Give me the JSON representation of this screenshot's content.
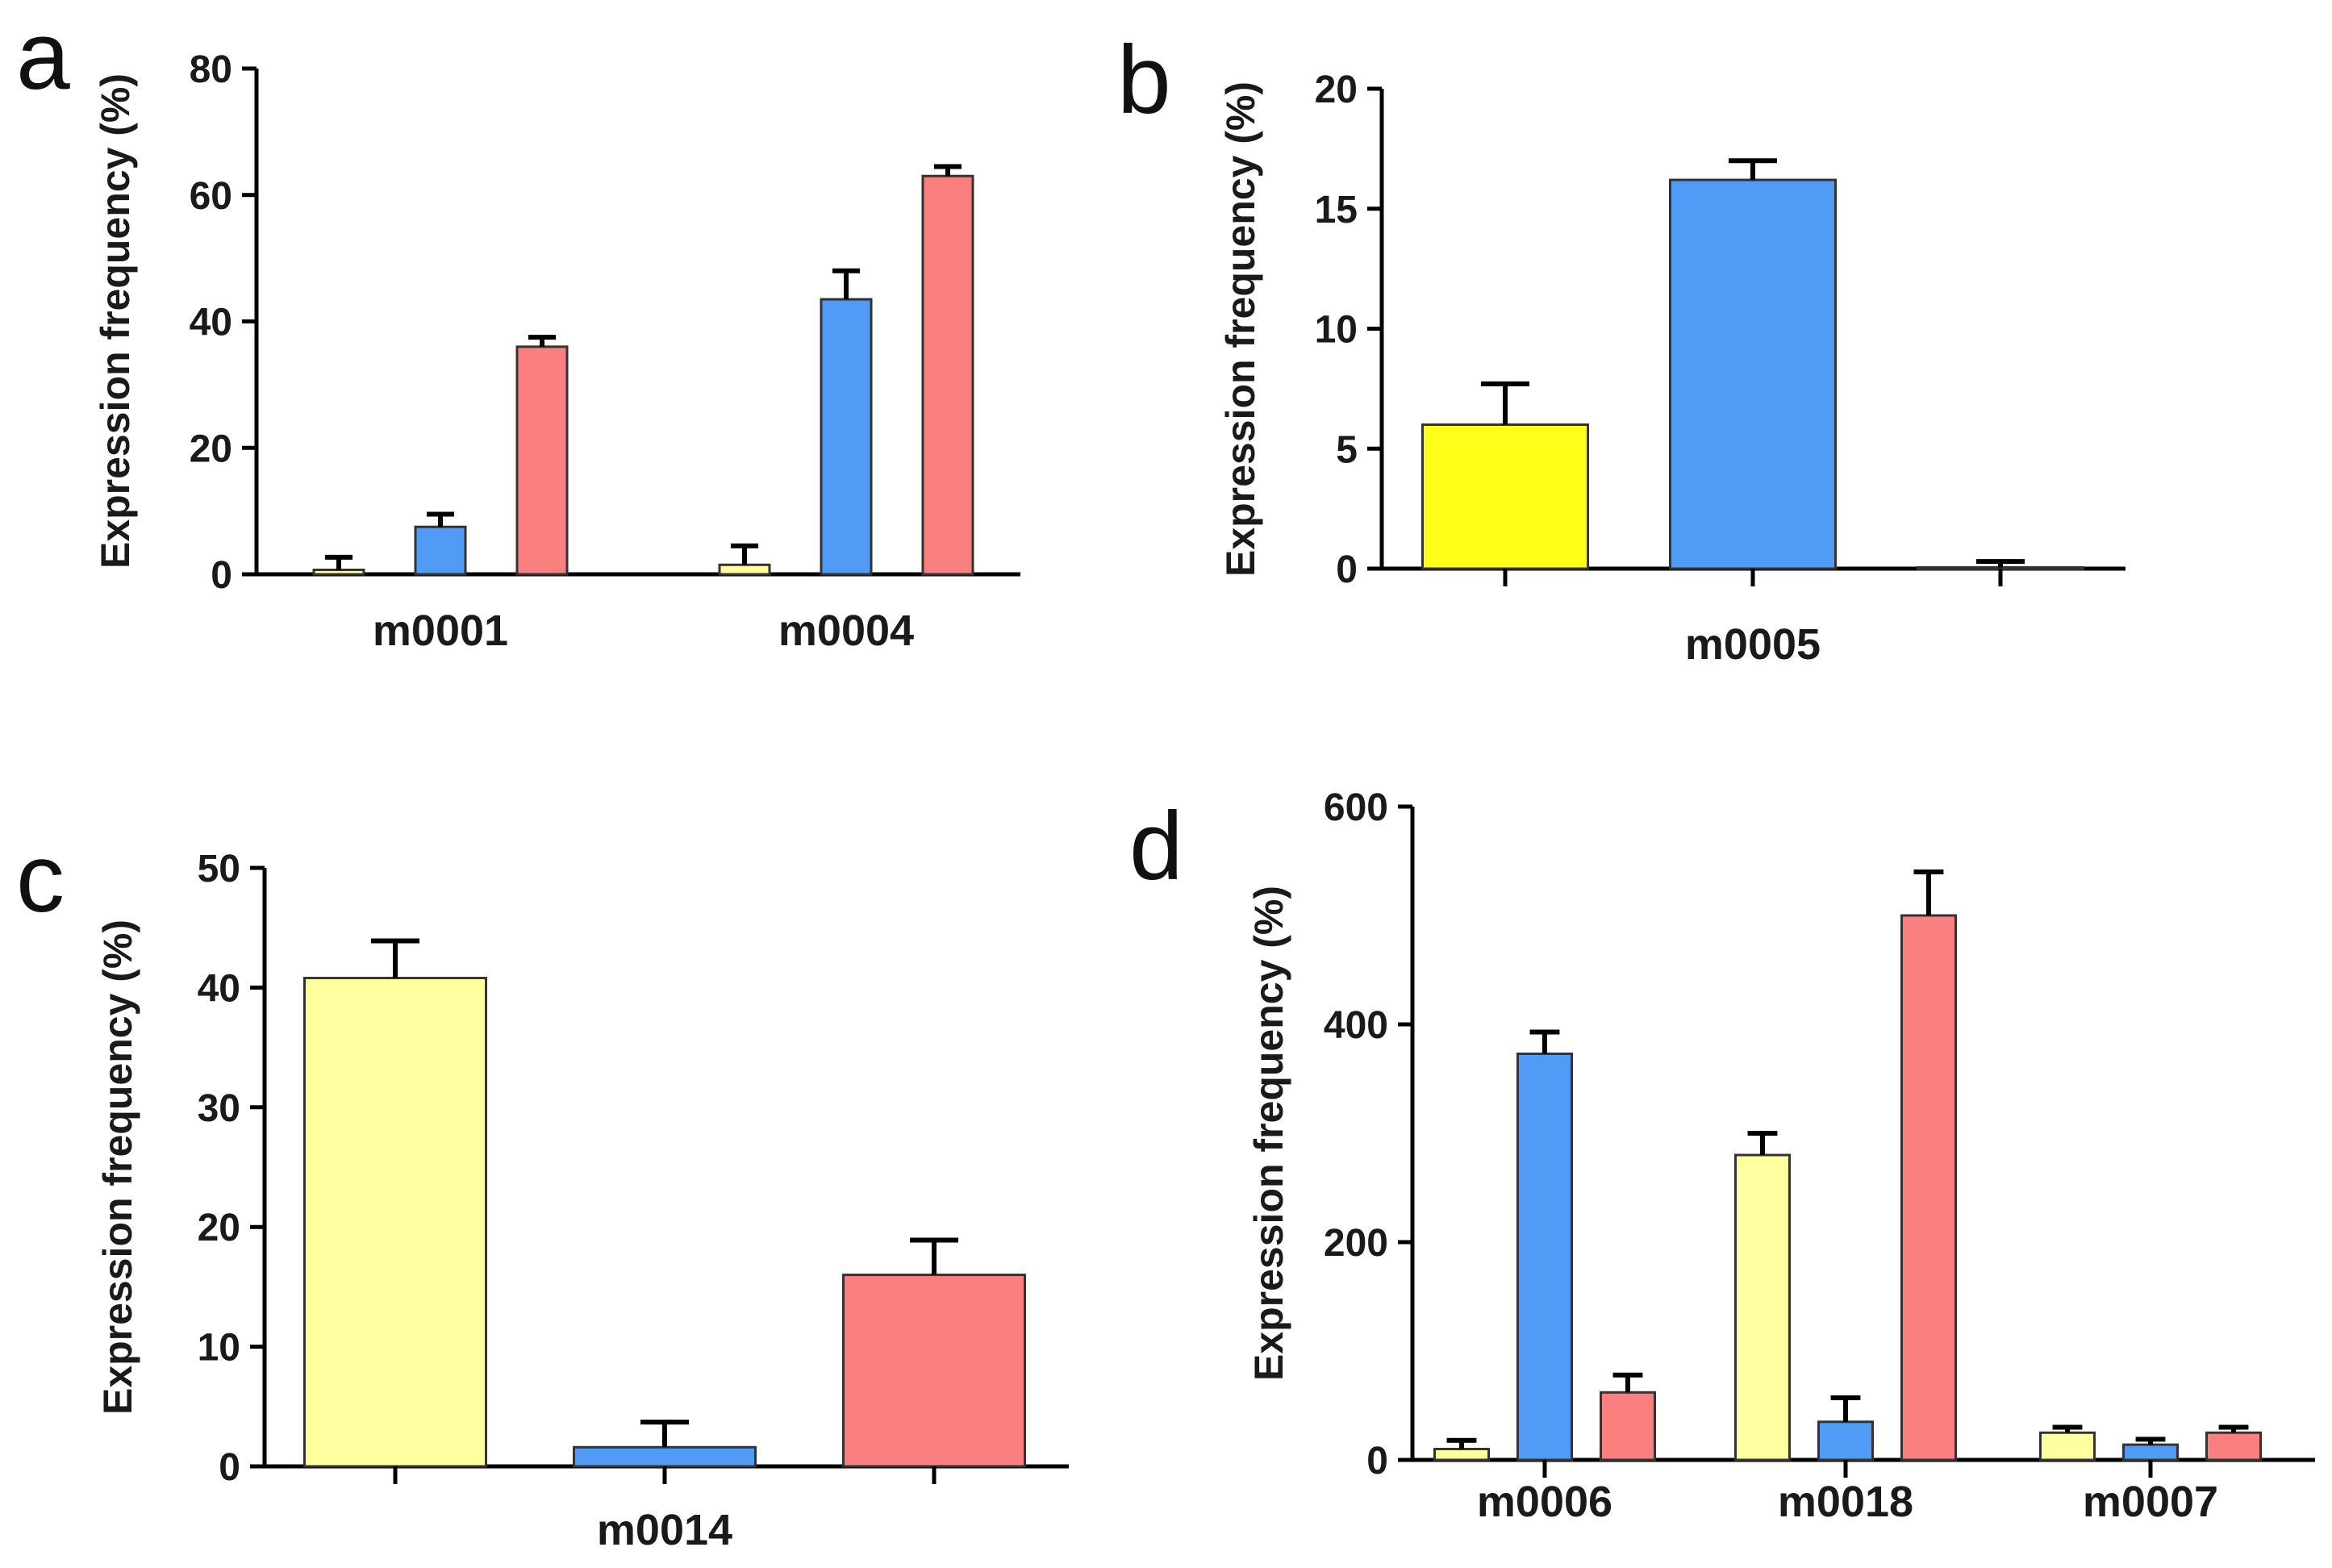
{
  "colors": {
    "yellow_pale": "#FFFFA0",
    "yellow_bright": "#FFFF1A",
    "blue": "#4F9BF5",
    "red": "#FA7F7F"
  },
  "chart_data": [
    {
      "panel": "a",
      "type": "bar",
      "ylabel": "Expression frequency (%)",
      "ylim": [
        0,
        80
      ],
      "yticks": [
        "0",
        "20",
        "40",
        "60",
        "80"
      ],
      "categories": [
        "m0001",
        "m0004"
      ],
      "series": [
        {
          "color": "yellow_pale",
          "values": [
            0.7,
            1.5
          ],
          "errors": [
            2.0,
            3.0
          ]
        },
        {
          "color": "blue",
          "values": [
            7.5,
            43.5
          ],
          "errors": [
            2.0,
            4.5
          ]
        },
        {
          "color": "red",
          "values": [
            36.0,
            63.0
          ],
          "errors": [
            1.5,
            1.5
          ]
        }
      ]
    },
    {
      "panel": "b",
      "type": "bar",
      "ylabel": "Expression frequency (%)",
      "ylim": [
        0,
        20
      ],
      "yticks": [
        "0",
        "5",
        "10",
        "15",
        "20"
      ],
      "categories": [
        "m0005"
      ],
      "series": [
        {
          "color": "yellow_bright",
          "values": [
            6.0
          ],
          "errors": [
            1.7
          ]
        },
        {
          "color": "blue",
          "values": [
            16.2
          ],
          "errors": [
            0.8
          ]
        },
        {
          "color": "red",
          "values": [
            0.05
          ],
          "errors": [
            0.25
          ]
        }
      ]
    },
    {
      "panel": "c",
      "type": "bar",
      "ylabel": "Expression frequency (%)",
      "ylim": [
        0,
        50
      ],
      "yticks": [
        "0",
        "10",
        "20",
        "30",
        "40",
        "50"
      ],
      "categories": [
        "m0014"
      ],
      "series": [
        {
          "color": "yellow_pale",
          "values": [
            40.8
          ],
          "errors": [
            3.1
          ]
        },
        {
          "color": "blue",
          "values": [
            1.6
          ],
          "errors": [
            2.1
          ]
        },
        {
          "color": "red",
          "values": [
            16.0
          ],
          "errors": [
            2.9
          ]
        }
      ]
    },
    {
      "panel": "d",
      "type": "bar",
      "ylabel": "Expression frequency (%)",
      "ylim": [
        0,
        600
      ],
      "yticks": [
        "0",
        "200",
        "400",
        "600"
      ],
      "categories": [
        "m0006",
        "m0018",
        "m0007"
      ],
      "series": [
        {
          "color": "yellow_pale",
          "values": [
            10,
            280,
            25
          ],
          "errors": [
            8,
            20,
            5
          ]
        },
        {
          "color": "blue",
          "values": [
            373,
            35,
            14
          ],
          "errors": [
            20,
            22,
            5
          ]
        },
        {
          "color": "red",
          "values": [
            62,
            500,
            25
          ],
          "errors": [
            16,
            40,
            5
          ]
        }
      ]
    }
  ]
}
